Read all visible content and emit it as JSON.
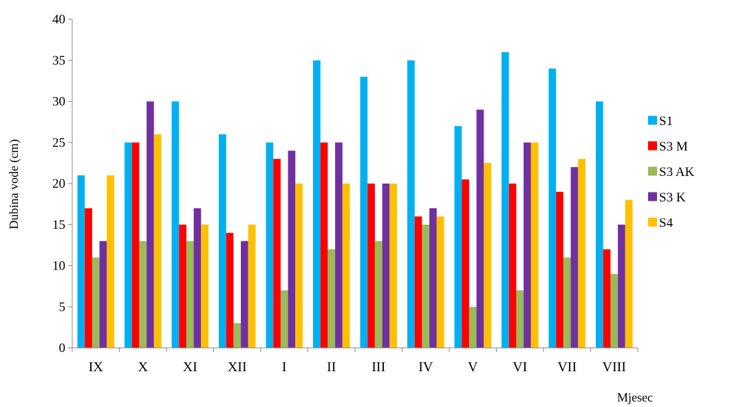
{
  "chart_data": {
    "type": "bar",
    "title": "",
    "xlabel": "Mjesec",
    "ylabel": "Dubina vode (cm)",
    "ylim": [
      0,
      40
    ],
    "yticks": [
      0,
      5,
      10,
      15,
      20,
      25,
      30,
      35,
      40
    ],
    "grid": false,
    "legend_position": "right",
    "categories": [
      "IX",
      "X",
      "XI",
      "XII",
      "I",
      "II",
      "III",
      "IV",
      "V",
      "VI",
      "VII",
      "VIII"
    ],
    "series": [
      {
        "name": "S1",
        "color": "#00B0F0",
        "values": [
          21,
          25,
          30,
          26,
          25,
          35,
          33,
          35,
          27,
          36,
          34,
          30
        ]
      },
      {
        "name": "S3 M",
        "color": "#FF0000",
        "values": [
          17,
          25,
          15,
          14,
          23,
          25,
          20,
          16,
          20.5,
          20,
          19,
          12
        ]
      },
      {
        "name": "S3 AK",
        "color": "#9BBB59",
        "values": [
          11,
          13,
          13,
          3,
          7,
          12,
          13,
          15,
          5,
          7,
          11,
          9
        ]
      },
      {
        "name": "S3 K",
        "color": "#7030A0",
        "values": [
          13,
          30,
          17,
          13,
          24,
          25,
          20,
          17,
          29,
          25,
          22,
          15
        ]
      },
      {
        "name": "S4",
        "color": "#FFC000",
        "values": [
          21,
          26,
          15,
          15,
          20,
          20,
          20,
          16,
          22.5,
          25,
          23,
          18
        ]
      }
    ]
  }
}
